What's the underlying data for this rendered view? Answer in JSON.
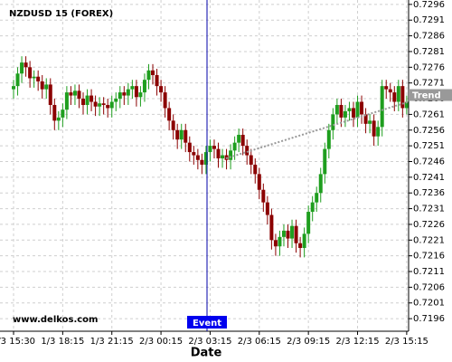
{
  "chart_data": {
    "type": "candlestick",
    "title": "NZDUSD 15 (FOREX)",
    "watermark": "www.delkos.com",
    "x_label": "Date",
    "event_label": "Event",
    "trend": {
      "label": "Trend",
      "values": [
        0.7247,
        0.7265
      ],
      "color": "#999999"
    },
    "up_color": "#1e9e1e",
    "down_color": "#8b0000",
    "grid": true,
    "categories": [
      "1/3 15:30",
      null,
      null,
      null,
      null,
      null,
      null,
      null,
      null,
      null,
      null,
      null,
      "1/3 18:15",
      null,
      null,
      null,
      null,
      null,
      null,
      null,
      null,
      null,
      null,
      null,
      "1/3 21:15",
      null,
      null,
      null,
      null,
      null,
      null,
      null,
      null,
      null,
      null,
      null,
      "2/3 00:15",
      null,
      null,
      null,
      null,
      null,
      null,
      null,
      null,
      null,
      null,
      null,
      "2/3 03:15",
      null,
      null,
      null,
      null,
      null,
      null,
      null,
      null,
      null,
      null,
      null,
      "2/3 06:15",
      null,
      null,
      null,
      null,
      null,
      null,
      null,
      null,
      null,
      null,
      null,
      "2/3 09:15",
      null,
      null,
      null,
      null,
      null,
      null,
      null,
      null,
      null,
      null,
      null,
      "2/3 12:15",
      null,
      null,
      null,
      null,
      null,
      null,
      null,
      null,
      null,
      null,
      null,
      "2/3 15:15"
    ],
    "open": [
      0.7269,
      0.727,
      0.7274,
      0.72775,
      0.7276,
      0.72725,
      0.7273,
      0.72715,
      0.7269,
      0.72705,
      0.7264,
      0.7259,
      0.726,
      0.72625,
      0.7268,
      0.7267,
      0.72685,
      0.7266,
      0.7264,
      0.7267,
      0.7265,
      0.72635,
      0.72645,
      0.7264,
      0.7263,
      0.7265,
      0.7266,
      0.7268,
      0.7267,
      0.7269,
      0.727,
      0.72665,
      0.7268,
      0.7272,
      0.7275,
      0.72735,
      0.727,
      0.7268,
      0.7263,
      0.7259,
      0.7256,
      0.7253,
      0.7256,
      0.7252,
      0.7249,
      0.7248,
      0.72465,
      0.7245,
      0.7249,
      0.7251,
      0.725,
      0.7247,
      0.7248,
      0.72465,
      0.72495,
      0.7252,
      0.72545,
      0.7251,
      0.7248,
      0.7245,
      0.7242,
      0.7237,
      0.7233,
      0.7229,
      0.7221,
      0.7219,
      0.7222,
      0.7224,
      0.72215,
      0.72255,
      0.722,
      0.72185,
      0.7223,
      0.723,
      0.7233,
      0.7236,
      0.7242,
      0.725,
      0.7256,
      0.7261,
      0.7264,
      0.726,
      0.7262,
      0.7263,
      0.726,
      0.7265,
      0.7261,
      0.7258,
      0.7259,
      0.7254,
      0.7257,
      0.727,
      0.7269,
      0.7268,
      0.7265,
      0.727,
      0.7263
    ],
    "close": [
      0.727,
      0.7274,
      0.72775,
      0.7276,
      0.72725,
      0.7273,
      0.72715,
      0.7269,
      0.72705,
      0.7264,
      0.7259,
      0.726,
      0.72625,
      0.7268,
      0.7267,
      0.72685,
      0.7266,
      0.7264,
      0.7267,
      0.7265,
      0.72635,
      0.72645,
      0.7264,
      0.7263,
      0.7265,
      0.7266,
      0.7268,
      0.7267,
      0.7269,
      0.727,
      0.72665,
      0.7268,
      0.7272,
      0.7275,
      0.72735,
      0.727,
      0.7268,
      0.7263,
      0.7259,
      0.7256,
      0.7253,
      0.7256,
      0.7252,
      0.7249,
      0.7248,
      0.72465,
      0.7245,
      0.7249,
      0.7251,
      0.725,
      0.7247,
      0.7248,
      0.72465,
      0.72495,
      0.7252,
      0.72545,
      0.7251,
      0.7248,
      0.7245,
      0.7242,
      0.7237,
      0.7233,
      0.7229,
      0.7221,
      0.7219,
      0.7222,
      0.7224,
      0.72215,
      0.72255,
      0.722,
      0.72185,
      0.7223,
      0.723,
      0.7233,
      0.7236,
      0.7242,
      0.725,
      0.7256,
      0.7261,
      0.7264,
      0.726,
      0.7262,
      0.7263,
      0.726,
      0.7265,
      0.7261,
      0.7258,
      0.7259,
      0.7254,
      0.7257,
      0.727,
      0.7269,
      0.7268,
      0.7265,
      0.727,
      0.7263,
      0.7265
    ],
    "high": [
      0.7272,
      0.7276,
      0.72795,
      0.72795,
      0.7278,
      0.7275,
      0.7275,
      0.72735,
      0.72725,
      0.72725,
      0.7266,
      0.7262,
      0.72645,
      0.727,
      0.727,
      0.72705,
      0.72705,
      0.7268,
      0.7269,
      0.7269,
      0.7267,
      0.72665,
      0.72665,
      0.7266,
      0.7267,
      0.7268,
      0.727,
      0.727,
      0.7271,
      0.7272,
      0.7272,
      0.727,
      0.7274,
      0.7277,
      0.7277,
      0.72755,
      0.7272,
      0.727,
      0.7265,
      0.7261,
      0.7258,
      0.7258,
      0.7258,
      0.7254,
      0.7251,
      0.725,
      0.72485,
      0.7251,
      0.7253,
      0.7253,
      0.7252,
      0.725,
      0.725,
      0.72515,
      0.7254,
      0.72565,
      0.72565,
      0.7253,
      0.725,
      0.7247,
      0.7244,
      0.7239,
      0.7235,
      0.7231,
      0.7223,
      0.7224,
      0.7226,
      0.7226,
      0.72275,
      0.72275,
      0.7222,
      0.7225,
      0.7232,
      0.7235,
      0.7238,
      0.7244,
      0.7252,
      0.7258,
      0.7263,
      0.7266,
      0.7266,
      0.7264,
      0.7265,
      0.7265,
      0.7267,
      0.7267,
      0.7263,
      0.7261,
      0.7261,
      0.7259,
      0.7272,
      0.7272,
      0.7271,
      0.727,
      0.7272,
      0.7272,
      0.7267
    ],
    "low": [
      0.7266,
      0.7267,
      0.7271,
      0.7273,
      0.72695,
      0.72695,
      0.72685,
      0.7266,
      0.7266,
      0.7261,
      0.7256,
      0.7256,
      0.7257,
      0.72595,
      0.7264,
      0.7264,
      0.7263,
      0.7261,
      0.7261,
      0.7262,
      0.72605,
      0.72605,
      0.7261,
      0.726,
      0.726,
      0.7262,
      0.7263,
      0.7264,
      0.7264,
      0.7266,
      0.72635,
      0.72635,
      0.7265,
      0.7269,
      0.72705,
      0.7267,
      0.7265,
      0.726,
      0.7256,
      0.7253,
      0.725,
      0.725,
      0.7249,
      0.7246,
      0.7245,
      0.72435,
      0.7242,
      0.7242,
      0.7246,
      0.7247,
      0.7244,
      0.7244,
      0.72435,
      0.72435,
      0.72465,
      0.7249,
      0.7248,
      0.7245,
      0.7242,
      0.7239,
      0.7234,
      0.723,
      0.7226,
      0.7218,
      0.7216,
      0.7216,
      0.7219,
      0.72185,
      0.72185,
      0.7217,
      0.72155,
      0.72155,
      0.722,
      0.7227,
      0.723,
      0.7233,
      0.7239,
      0.7247,
      0.7253,
      0.7258,
      0.7257,
      0.7257,
      0.7259,
      0.7257,
      0.7257,
      0.7258,
      0.7255,
      0.7255,
      0.7251,
      0.7251,
      0.7254,
      0.7266,
      0.7265,
      0.7262,
      0.7262,
      0.726,
      0.7261
    ],
    "ylim": [
      0.7192,
      0.72974
    ],
    "yticks": [
      0.7196,
      0.7201,
      0.7206,
      0.7211,
      0.7216,
      0.7221,
      0.7226,
      0.7231,
      0.7236,
      0.7241,
      0.7246,
      0.7251,
      0.7256,
      0.7261,
      0.7266,
      0.7271,
      0.7276,
      0.7281,
      0.7286,
      0.7291,
      0.7296
    ]
  }
}
